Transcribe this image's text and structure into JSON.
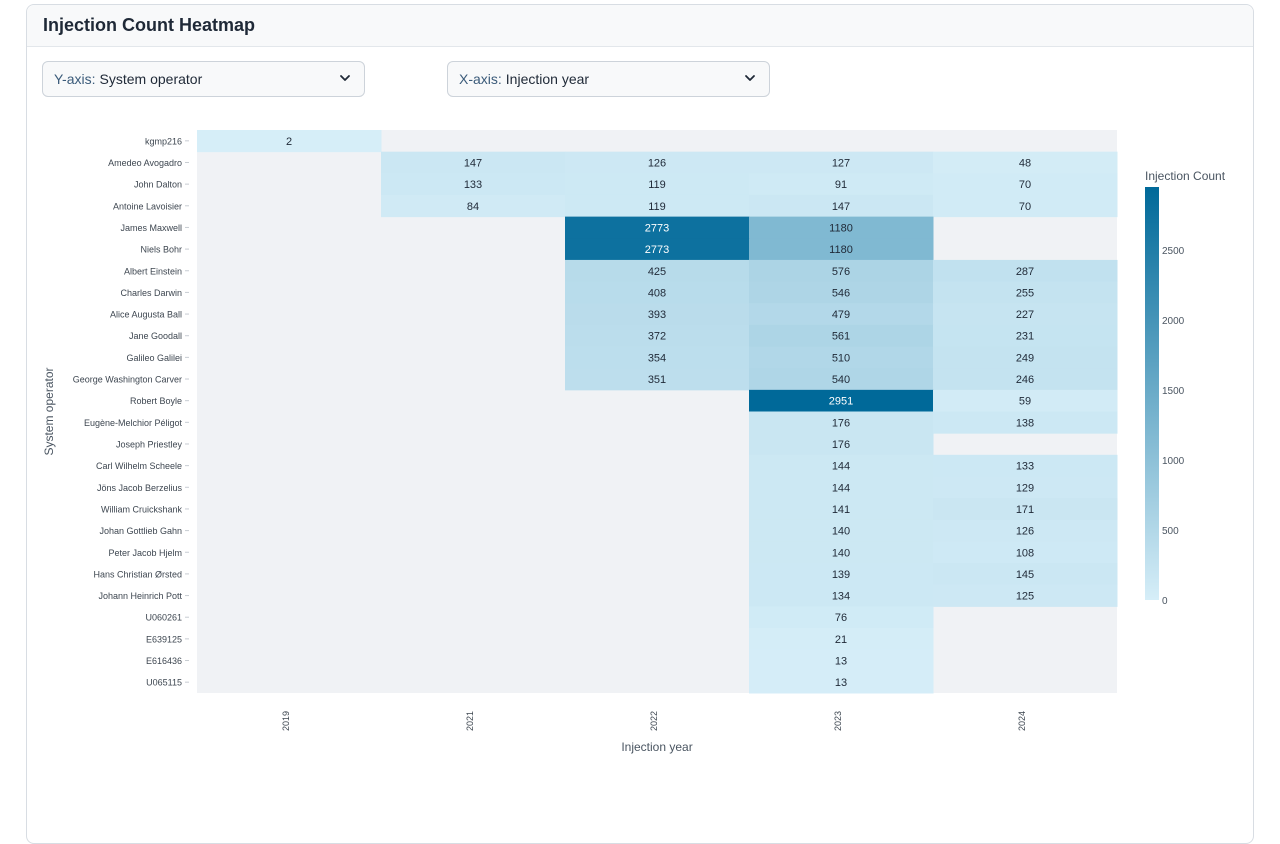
{
  "card": {
    "title": "Injection Count Heatmap"
  },
  "controls": {
    "y_select": {
      "prefix": "Y-axis:",
      "value": "System operator"
    },
    "x_select": {
      "prefix": "X-axis:",
      "value": "Injection year"
    }
  },
  "colors": {
    "low": "#d6eef8",
    "high": "#006999",
    "empty": "#f0f2f5",
    "text_dark": "#1f2937",
    "text_light": "#ffffff"
  },
  "chart_data": {
    "type": "heatmap",
    "title": "",
    "xlabel": "Injection year",
    "ylabel": "System operator",
    "x_categories": [
      "2019",
      "2021",
      "2022",
      "2023",
      "2024"
    ],
    "y_categories": [
      "kgmp216",
      "Amedeo Avogadro",
      "John Dalton",
      "Antoine Lavoisier",
      "James Maxwell",
      "Niels Bohr",
      "Albert Einstein",
      "Charles Darwin",
      "Alice Augusta Ball",
      "Jane Goodall",
      "Galileo Galilei",
      "George Washington Carver",
      "Robert Boyle",
      "Eugène-Melchior Péligot",
      "Joseph Priestley",
      "Carl Wilhelm Scheele",
      "Jöns Jacob Berzelius",
      "William Cruickshank",
      "Johan Gottlieb Gahn",
      "Peter Jacob Hjelm",
      "Hans Christian Ørsted",
      "Johann Heinrich Pott",
      "U060261",
      "E639125",
      "E616436",
      "U065115"
    ],
    "values": [
      [
        2,
        null,
        null,
        null,
        null
      ],
      [
        null,
        147,
        126,
        127,
        48
      ],
      [
        null,
        133,
        119,
        91,
        70
      ],
      [
        null,
        84,
        119,
        147,
        70
      ],
      [
        null,
        null,
        2773,
        1180,
        null
      ],
      [
        null,
        null,
        2773,
        1180,
        null
      ],
      [
        null,
        null,
        425,
        576,
        287
      ],
      [
        null,
        null,
        408,
        546,
        255
      ],
      [
        null,
        null,
        393,
        479,
        227
      ],
      [
        null,
        null,
        372,
        561,
        231
      ],
      [
        null,
        null,
        354,
        510,
        249
      ],
      [
        null,
        null,
        351,
        540,
        246
      ],
      [
        null,
        null,
        null,
        2951,
        59
      ],
      [
        null,
        null,
        null,
        176,
        138
      ],
      [
        null,
        null,
        null,
        176,
        null
      ],
      [
        null,
        null,
        null,
        144,
        133
      ],
      [
        null,
        null,
        null,
        144,
        129
      ],
      [
        null,
        null,
        null,
        141,
        171
      ],
      [
        null,
        null,
        null,
        140,
        126
      ],
      [
        null,
        null,
        null,
        140,
        108
      ],
      [
        null,
        null,
        null,
        139,
        145
      ],
      [
        null,
        null,
        null,
        134,
        125
      ],
      [
        null,
        null,
        null,
        76,
        null
      ],
      [
        null,
        null,
        null,
        21,
        null
      ],
      [
        null,
        null,
        null,
        13,
        null
      ],
      [
        null,
        null,
        null,
        13,
        null
      ]
    ],
    "colorbar": {
      "title": "Injection Count",
      "range": [
        0,
        2951
      ],
      "ticks": [
        0,
        500,
        1000,
        1500,
        2000,
        2500
      ]
    }
  }
}
